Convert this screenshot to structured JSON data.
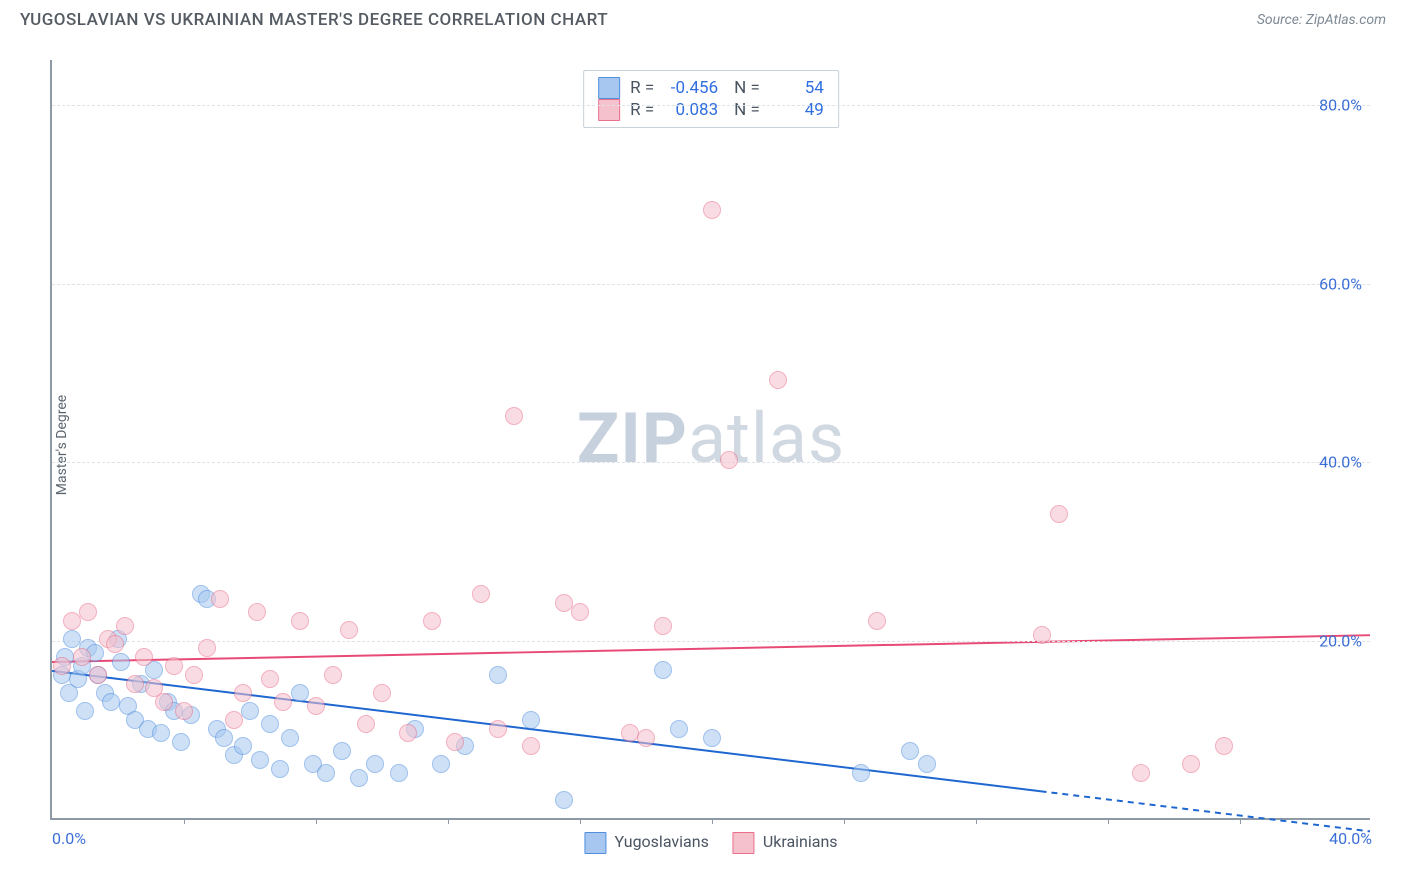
{
  "header": {
    "title": "YUGOSLAVIAN VS UKRAINIAN MASTER'S DEGREE CORRELATION CHART",
    "source_prefix": "Source: ",
    "source": "ZipAtlas.com"
  },
  "chart": {
    "type": "scatter",
    "ylabel": "Master's Degree",
    "watermark_a": "ZIP",
    "watermark_b": "atlas",
    "xlim": [
      0,
      40
    ],
    "ylim": [
      0,
      85
    ],
    "x_ticks": [
      0,
      4,
      8,
      12,
      16,
      20,
      24,
      28,
      32,
      36,
      40
    ],
    "x_tick_labels": {
      "0": "0.0%",
      "40": "40.0%"
    },
    "y_ticks": [
      20,
      40,
      60,
      80
    ],
    "y_tick_labels": {
      "20": "20.0%",
      "40": "40.0%",
      "60": "60.0%",
      "80": "80.0%"
    },
    "background_color": "#ffffff",
    "grid_color": "#dfe3e7",
    "axis_color": "#8d9aa6",
    "marker_radius": 9,
    "marker_opacity": 0.55,
    "series": [
      {
        "id": "yugoslavians",
        "label": "Yugoslavians",
        "color_fill": "#a7c7f0",
        "color_stroke": "#4f8fde",
        "r_label": "R =",
        "r_value": "-0.456",
        "n_label": "N =",
        "n_value": "54",
        "trend": {
          "y_at_x0": 16.5,
          "y_at_xmax": -1.5,
          "color": "#1e66d0",
          "width": 2,
          "dash_after_x": 30
        },
        "points": [
          [
            0.3,
            16
          ],
          [
            0.4,
            18
          ],
          [
            0.5,
            14
          ],
          [
            0.6,
            20
          ],
          [
            0.8,
            15.5
          ],
          [
            0.9,
            17
          ],
          [
            1.0,
            12
          ],
          [
            1.1,
            19
          ],
          [
            1.3,
            18.5
          ],
          [
            1.4,
            16
          ],
          [
            1.6,
            14
          ],
          [
            1.8,
            13
          ],
          [
            2.0,
            20
          ],
          [
            2.1,
            17.5
          ],
          [
            2.3,
            12.5
          ],
          [
            2.5,
            11
          ],
          [
            2.7,
            15
          ],
          [
            2.9,
            10
          ],
          [
            3.1,
            16.5
          ],
          [
            3.3,
            9.5
          ],
          [
            3.5,
            13
          ],
          [
            3.7,
            12
          ],
          [
            3.9,
            8.5
          ],
          [
            4.2,
            11.5
          ],
          [
            4.5,
            25
          ],
          [
            4.7,
            24.5
          ],
          [
            5.0,
            10
          ],
          [
            5.2,
            9
          ],
          [
            5.5,
            7
          ],
          [
            5.8,
            8
          ],
          [
            6.0,
            12
          ],
          [
            6.3,
            6.5
          ],
          [
            6.6,
            10.5
          ],
          [
            6.9,
            5.5
          ],
          [
            7.2,
            9
          ],
          [
            7.5,
            14
          ],
          [
            7.9,
            6
          ],
          [
            8.3,
            5
          ],
          [
            8.8,
            7.5
          ],
          [
            9.3,
            4.5
          ],
          [
            9.8,
            6
          ],
          [
            10.5,
            5
          ],
          [
            11.0,
            10
          ],
          [
            11.8,
            6
          ],
          [
            12.5,
            8
          ],
          [
            13.5,
            16
          ],
          [
            14.5,
            11
          ],
          [
            15.5,
            2
          ],
          [
            18.5,
            16.5
          ],
          [
            19.0,
            10
          ],
          [
            20.0,
            9
          ],
          [
            24.5,
            5
          ],
          [
            26.0,
            7.5
          ],
          [
            26.5,
            6
          ]
        ]
      },
      {
        "id": "ukrainians",
        "label": "Ukrainians",
        "color_fill": "#f5c1cd",
        "color_stroke": "#e96f8b",
        "r_label": "R =",
        "r_value": "0.083",
        "n_label": "N =",
        "n_value": "49",
        "trend": {
          "y_at_x0": 17.5,
          "y_at_xmax": 20.5,
          "color": "#e84a76",
          "width": 2,
          "dash_after_x": null
        },
        "points": [
          [
            0.3,
            17
          ],
          [
            0.6,
            22
          ],
          [
            0.9,
            18
          ],
          [
            1.1,
            23
          ],
          [
            1.4,
            16
          ],
          [
            1.7,
            20
          ],
          [
            1.9,
            19.5
          ],
          [
            2.2,
            21.5
          ],
          [
            2.5,
            15
          ],
          [
            2.8,
            18
          ],
          [
            3.1,
            14.5
          ],
          [
            3.4,
            13
          ],
          [
            3.7,
            17
          ],
          [
            4.0,
            12
          ],
          [
            4.3,
            16
          ],
          [
            4.7,
            19
          ],
          [
            5.1,
            24.5
          ],
          [
            5.5,
            11
          ],
          [
            5.8,
            14
          ],
          [
            6.2,
            23
          ],
          [
            6.6,
            15.5
          ],
          [
            7.0,
            13
          ],
          [
            7.5,
            22
          ],
          [
            8.0,
            12.5
          ],
          [
            8.5,
            16
          ],
          [
            9.0,
            21
          ],
          [
            9.5,
            10.5
          ],
          [
            10.0,
            14
          ],
          [
            10.8,
            9.5
          ],
          [
            11.5,
            22
          ],
          [
            12.2,
            8.5
          ],
          [
            13.0,
            25
          ],
          [
            13.5,
            10
          ],
          [
            14.0,
            45
          ],
          [
            14.5,
            8
          ],
          [
            15.5,
            24
          ],
          [
            16.0,
            23
          ],
          [
            17.5,
            9.5
          ],
          [
            18.0,
            9
          ],
          [
            18.5,
            21.5
          ],
          [
            20.0,
            68
          ],
          [
            20.5,
            40
          ],
          [
            22.0,
            49
          ],
          [
            25.0,
            22
          ],
          [
            30.0,
            20.5
          ],
          [
            30.5,
            34
          ],
          [
            33.0,
            5
          ],
          [
            34.5,
            6
          ],
          [
            35.5,
            8
          ]
        ]
      }
    ],
    "legend_bottom": [
      {
        "swatch_fill": "#a7c7f0",
        "swatch_stroke": "#4f8fde",
        "text": "Yugoslavians"
      },
      {
        "swatch_fill": "#f5c1cd",
        "swatch_stroke": "#e96f8b",
        "text": "Ukrainians"
      }
    ]
  }
}
